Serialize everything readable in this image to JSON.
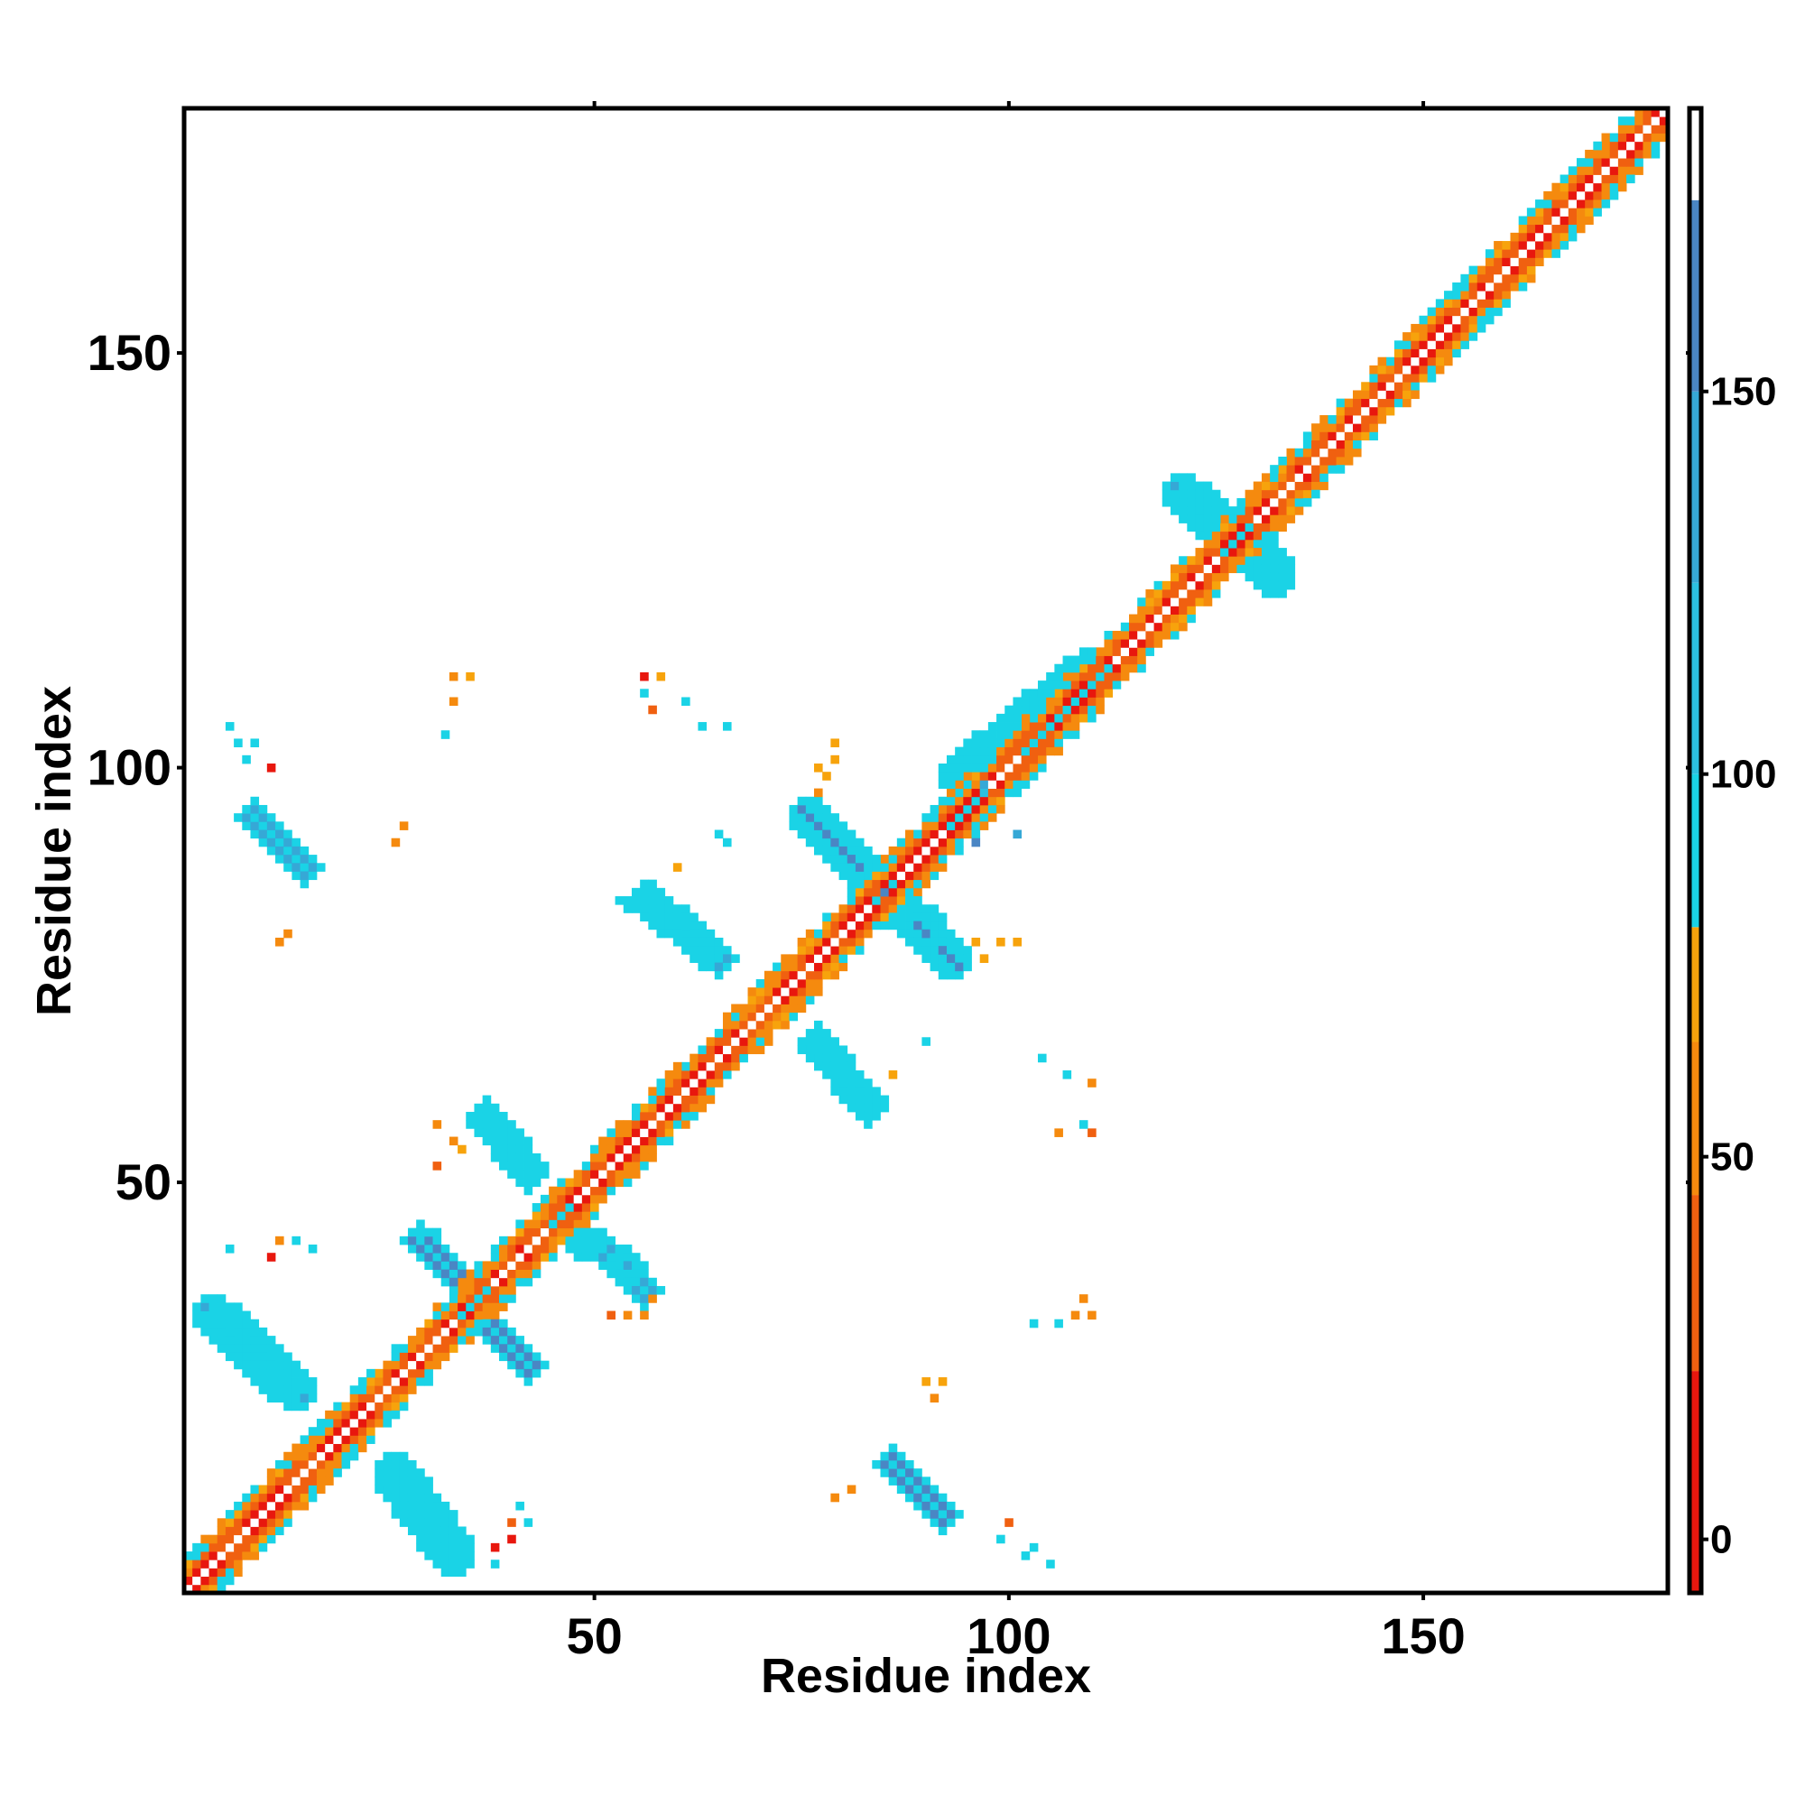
{
  "chart_data": {
    "type": "heatmap",
    "title": "",
    "xlabel": "Residue index",
    "ylabel": "Residue index",
    "xlim": [
      1,
      179
    ],
    "ylim": [
      1,
      179
    ],
    "x_ticks": [
      50,
      100,
      150
    ],
    "y_ticks": [
      50,
      100,
      150
    ],
    "colorbar": {
      "range": [
        -7,
        187
      ],
      "ticks": [
        0,
        50,
        100,
        150
      ],
      "bands": [
        {
          "from": -7,
          "to": 22,
          "color": "#e8170e"
        },
        {
          "from": 22,
          "to": 45,
          "color": "#f06010"
        },
        {
          "from": 45,
          "to": 65,
          "color": "#f58a0e"
        },
        {
          "from": 65,
          "to": 80,
          "color": "#f7a30c"
        },
        {
          "from": 80,
          "to": 100,
          "color": "#1ad3e6"
        },
        {
          "from": 100,
          "to": 125,
          "color": "#2cc0e0"
        },
        {
          "from": 125,
          "to": 150,
          "color": "#36a8d6"
        },
        {
          "from": 150,
          "to": 175,
          "color": "#4a86c4"
        },
        {
          "from": 175,
          "to": 187,
          "color": "#ffffff"
        }
      ]
    },
    "diagonal_band": {
      "from": 1,
      "to": 179,
      "width": 4
    },
    "contact_segments": [
      {
        "x1": 26,
        "y1": 15,
        "x2": 33,
        "y2": 5,
        "value": 140,
        "width": 2.6
      },
      {
        "x1": 4,
        "y1": 34,
        "x2": 14,
        "y2": 25,
        "value": 140,
        "width": 2.6
      },
      {
        "x1": 29,
        "y1": 43,
        "x2": 35,
        "y2": 37,
        "value": 150,
        "width": 2.2
      },
      {
        "x1": 36,
        "y1": 34,
        "x2": 42,
        "y2": 28,
        "value": 150,
        "width": 2.2
      },
      {
        "x1": 37,
        "y1": 58,
        "x2": 42,
        "y2": 51,
        "value": 140,
        "width": 2.2
      },
      {
        "x1": 45,
        "y1": 46,
        "x2": 49,
        "y2": 43,
        "value": 120,
        "width": 2.0
      },
      {
        "x1": 51,
        "y1": 42,
        "x2": 56,
        "y2": 37,
        "value": 140,
        "width": 2.2
      },
      {
        "x1": 9,
        "y1": 94,
        "x2": 15,
        "y2": 88,
        "value": 140,
        "width": 2.2
      },
      {
        "x1": 56,
        "y1": 84,
        "x2": 65,
        "y2": 77,
        "value": 140,
        "width": 2.2
      },
      {
        "x1": 76,
        "y1": 94,
        "x2": 84,
        "y2": 86,
        "value": 160,
        "width": 2.4
      },
      {
        "x1": 86,
        "y1": 84,
        "x2": 93,
        "y2": 77,
        "value": 160,
        "width": 2.4
      },
      {
        "x1": 77,
        "y1": 67,
        "x2": 83,
        "y2": 59,
        "value": 150,
        "width": 2.2
      },
      {
        "x1": 121,
        "y1": 133,
        "x2": 127,
        "y2": 128,
        "value": 140,
        "width": 2.4
      },
      {
        "x1": 128,
        "y1": 128,
        "x2": 132,
        "y2": 123,
        "value": 140,
        "width": 2.4
      },
      {
        "x1": 86,
        "y1": 16,
        "x2": 92,
        "y2": 10,
        "value": 150,
        "width": 2.2
      },
      {
        "x1": 94,
        "y1": 99,
        "x2": 110,
        "y2": 112,
        "value": 90,
        "width": 2.4
      },
      {
        "x1": 92,
        "y1": 94,
        "x2": 96,
        "y2": 97,
        "value": 120,
        "width": 1.8
      }
    ],
    "contact_points": [
      [
        6,
        105,
        90
      ],
      [
        7,
        103,
        90
      ],
      [
        9,
        103,
        90
      ],
      [
        8,
        101,
        90
      ],
      [
        11,
        100,
        20
      ],
      [
        33,
        111,
        60
      ],
      [
        35,
        111,
        70
      ],
      [
        33,
        108,
        50
      ],
      [
        32,
        104,
        90
      ],
      [
        56,
        111,
        20
      ],
      [
        58,
        111,
        70
      ],
      [
        56,
        109,
        90
      ],
      [
        61,
        108,
        90
      ],
      [
        63,
        105,
        90
      ],
      [
        66,
        105,
        90
      ],
      [
        57,
        107,
        30
      ],
      [
        79,
        103,
        70
      ],
      [
        79,
        101,
        70
      ],
      [
        77,
        100,
        70
      ],
      [
        78,
        99,
        70
      ],
      [
        77,
        97,
        50
      ],
      [
        27,
        93,
        50
      ],
      [
        26,
        91,
        50
      ],
      [
        60,
        88,
        70
      ],
      [
        66,
        91,
        90
      ],
      [
        65,
        92,
        90
      ],
      [
        13,
        80,
        50
      ],
      [
        12,
        79,
        50
      ],
      [
        54,
        83,
        90
      ],
      [
        53,
        84,
        90
      ],
      [
        96,
        79,
        70
      ],
      [
        99,
        79,
        70
      ],
      [
        101,
        79,
        70
      ],
      [
        97,
        77,
        70
      ],
      [
        90,
        67,
        90
      ],
      [
        86,
        63,
        70
      ],
      [
        104,
        65,
        90
      ],
      [
        107,
        63,
        90
      ],
      [
        110,
        62,
        50
      ],
      [
        106,
        56,
        50
      ],
      [
        110,
        56,
        30
      ],
      [
        109,
        57,
        90
      ],
      [
        31,
        57,
        50
      ],
      [
        33,
        55,
        50
      ],
      [
        31,
        52,
        30
      ],
      [
        34,
        54,
        70
      ],
      [
        6,
        42,
        90
      ],
      [
        11,
        41,
        20
      ],
      [
        12,
        43,
        50
      ],
      [
        14,
        43,
        90
      ],
      [
        16,
        42,
        90
      ],
      [
        29,
        44,
        90
      ],
      [
        31,
        44,
        90
      ],
      [
        52,
        34,
        30
      ],
      [
        54,
        34,
        50
      ],
      [
        56,
        34,
        50
      ],
      [
        57,
        36,
        50
      ],
      [
        90,
        26,
        70
      ],
      [
        92,
        26,
        70
      ],
      [
        91,
        24,
        50
      ],
      [
        103,
        33,
        90
      ],
      [
        106,
        33,
        90
      ],
      [
        108,
        34,
        50
      ],
      [
        110,
        34,
        50
      ],
      [
        109,
        36,
        50
      ],
      [
        79,
        12,
        50
      ],
      [
        81,
        13,
        50
      ],
      [
        99,
        7,
        90
      ],
      [
        100,
        9,
        30
      ],
      [
        102,
        5,
        90
      ],
      [
        103,
        6,
        90
      ],
      [
        105,
        4,
        90
      ],
      [
        38,
        6,
        20
      ],
      [
        40,
        7,
        20
      ],
      [
        40,
        9,
        30
      ],
      [
        42,
        9,
        90
      ],
      [
        41,
        11,
        90
      ],
      [
        38,
        4,
        90
      ],
      [
        96,
        91,
        150
      ],
      [
        97,
        98,
        130
      ],
      [
        101,
        92,
        130
      ]
    ]
  }
}
